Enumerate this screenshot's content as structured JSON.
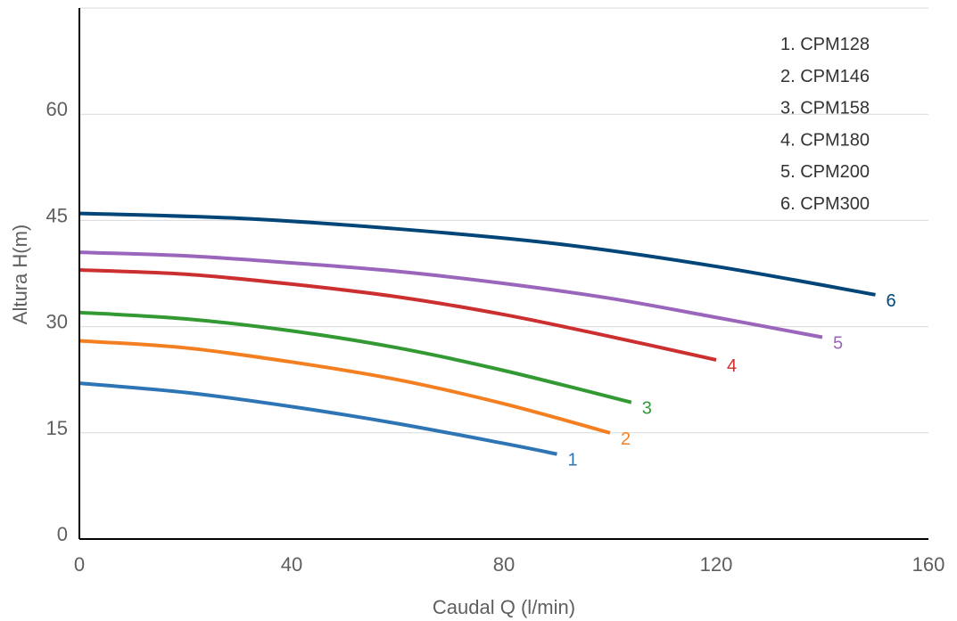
{
  "chart_data": {
    "type": "line",
    "title": "",
    "xlabel": "Caudal Q (l/min)",
    "ylabel": "Altura H(m)",
    "xlim": [
      0,
      160
    ],
    "ylim": [
      0,
      75
    ],
    "x_ticks": [
      "0",
      "40",
      "80",
      "120",
      "160"
    ],
    "y_ticks": [
      "0",
      "15",
      "30",
      "45",
      "60"
    ],
    "grid": "horizontal",
    "legend_placement": "top-right",
    "legend": [
      "1. CPM128",
      "2. CPM146",
      "3. CPM158",
      "4. CPM180",
      "5. CPM200",
      "6. CPM300"
    ],
    "series": [
      {
        "label": "1",
        "color": "#2e75b6",
        "x": [
          0,
          20,
          40,
          60,
          80,
          90
        ],
        "y": [
          22,
          20.7,
          18.7,
          16.3,
          13.5,
          12
        ]
      },
      {
        "label": "2",
        "color": "#f47f20",
        "x": [
          0,
          20,
          40,
          60,
          80,
          100
        ],
        "y": [
          28,
          27,
          25,
          22.5,
          19.1,
          15
        ]
      },
      {
        "label": "3",
        "color": "#339933",
        "x": [
          0,
          20,
          40,
          60,
          80,
          104
        ],
        "y": [
          32,
          31.1,
          29.4,
          27,
          23.8,
          19.3
        ]
      },
      {
        "label": "4",
        "color": "#cc2f2f",
        "x": [
          0,
          20,
          40,
          60,
          80,
          100,
          120
        ],
        "y": [
          38,
          37.4,
          36,
          34.2,
          31.7,
          28.6,
          25.3
        ]
      },
      {
        "label": "5",
        "color": "#9966bb",
        "x": [
          0,
          20,
          40,
          60,
          80,
          100,
          120,
          140
        ],
        "y": [
          40.5,
          40,
          39,
          37.8,
          36.1,
          34,
          31.3,
          28.5
        ]
      },
      {
        "label": "6",
        "color": "#004578",
        "x": [
          0,
          30,
          60,
          90,
          120,
          150
        ],
        "y": [
          46,
          45.3,
          43.8,
          41.7,
          38.5,
          34.5
        ]
      }
    ]
  }
}
